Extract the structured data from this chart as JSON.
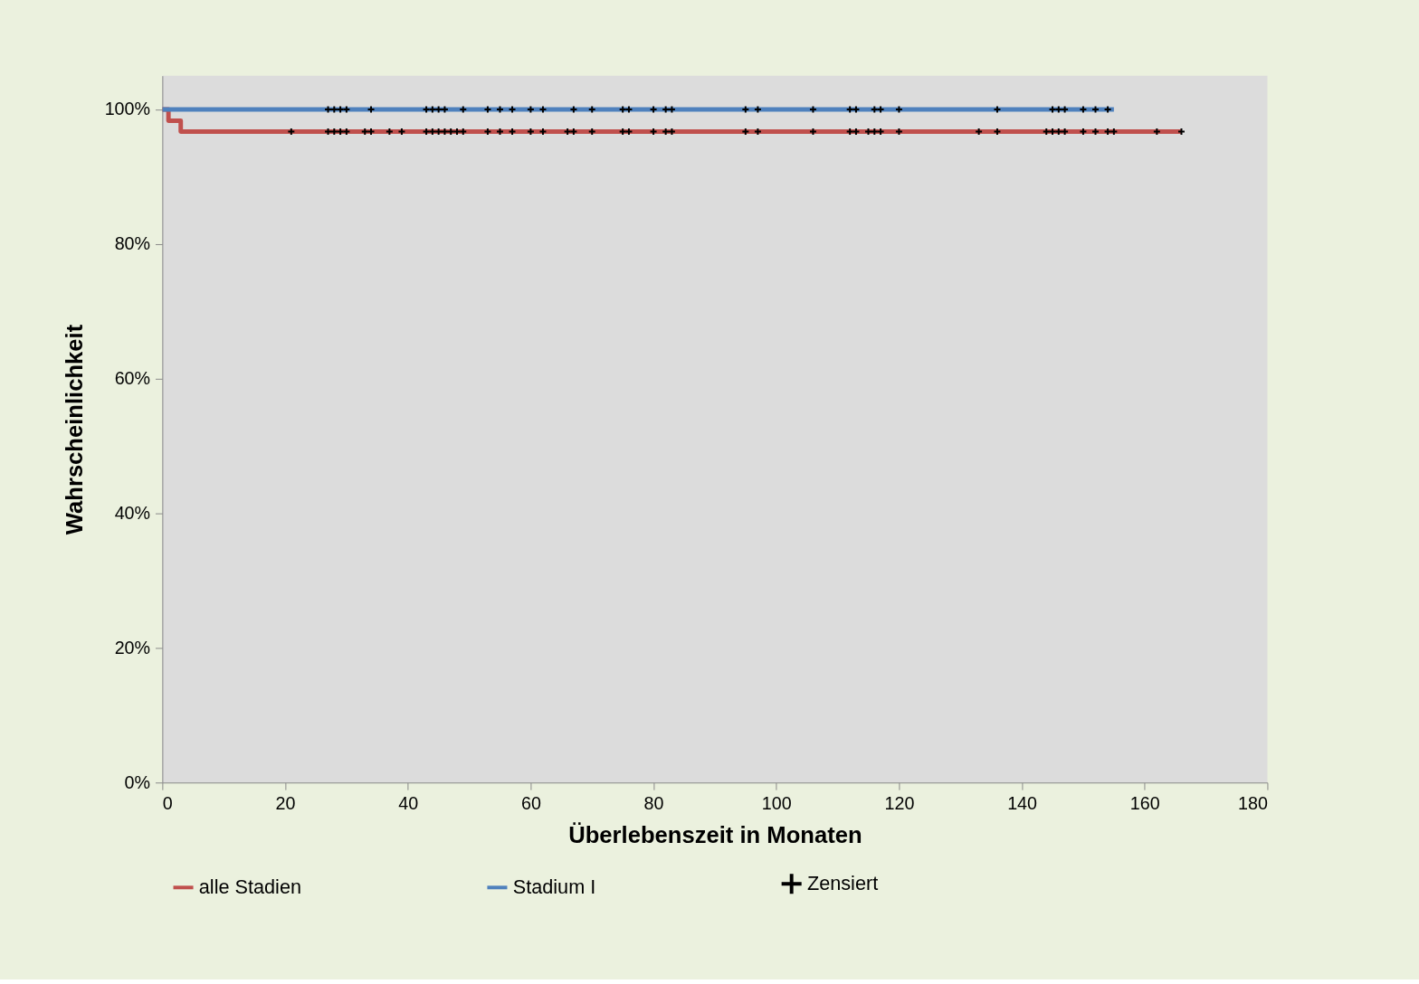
{
  "chart_data": {
    "type": "step",
    "xlabel": "Überlebenszeit in Monaten",
    "ylabel": "Wahrscheinlichkeit",
    "xlim": [
      0,
      180
    ],
    "xticks": [
      0,
      20,
      40,
      60,
      80,
      100,
      120,
      140,
      160,
      180
    ],
    "ylim": [
      0,
      105
    ],
    "yticks": [
      {
        "value": 0,
        "label": "0%"
      },
      {
        "value": 20,
        "label": "20%"
      },
      {
        "value": 40,
        "label": "40%"
      },
      {
        "value": 60,
        "label": "60%"
      },
      {
        "value": 80,
        "label": "80%"
      },
      {
        "value": 100,
        "label": "100%"
      }
    ],
    "grid": false,
    "legend": "bottom",
    "line_style": "solid",
    "series": [
      {
        "name": "alle Stadien",
        "color": "#c0504d",
        "marker": "none",
        "x": [
          0,
          1,
          3,
          166
        ],
        "values": [
          100,
          98.3,
          96.7,
          96.7
        ]
      },
      {
        "name": "Stadium I",
        "color": "#4f81bd",
        "marker": "none",
        "x": [
          0,
          155
        ],
        "values": [
          100,
          100
        ]
      },
      {
        "name": "Zensiert",
        "type": "scatter",
        "color": "#000000",
        "marker": "cross",
        "x": [
          27,
          28,
          29,
          30,
          34,
          43,
          44,
          45,
          46,
          49,
          53,
          55,
          57,
          60,
          62,
          67,
          70,
          75,
          76,
          80,
          82,
          83,
          95,
          97,
          106,
          112,
          113,
          116,
          117,
          120,
          136,
          145,
          146,
          147,
          150,
          152,
          154,
          21,
          27,
          28,
          29,
          30,
          33,
          34,
          37,
          39,
          43,
          44,
          45,
          46,
          47,
          48,
          49,
          53,
          55,
          57,
          60,
          62,
          66,
          67,
          70,
          75,
          76,
          80,
          82,
          83,
          95,
          97,
          106,
          112,
          113,
          115,
          116,
          117,
          120,
          133,
          136,
          144,
          145,
          146,
          147,
          150,
          152,
          154,
          155,
          162,
          166
        ],
        "values": [
          100,
          100,
          100,
          100,
          100,
          100,
          100,
          100,
          100,
          100,
          100,
          100,
          100,
          100,
          100,
          100,
          100,
          100,
          100,
          100,
          100,
          100,
          100,
          100,
          100,
          100,
          100,
          100,
          100,
          100,
          100,
          100,
          100,
          100,
          100,
          100,
          100,
          96.7,
          96.7,
          96.7,
          96.7,
          96.7,
          96.7,
          96.7,
          96.7,
          96.7,
          96.7,
          96.7,
          96.7,
          96.7,
          96.7,
          96.7,
          96.7,
          96.7,
          96.7,
          96.7,
          96.7,
          96.7,
          96.7,
          96.7,
          96.7,
          96.7,
          96.7,
          96.7,
          96.7,
          96.7,
          96.7,
          96.7,
          96.7,
          96.7,
          96.7,
          96.7,
          96.7,
          96.7,
          96.7,
          96.7,
          96.7,
          96.7,
          96.7,
          96.7,
          96.7,
          96.7,
          96.7,
          96.7,
          96.7,
          96.7,
          96.7
        ]
      }
    ]
  }
}
